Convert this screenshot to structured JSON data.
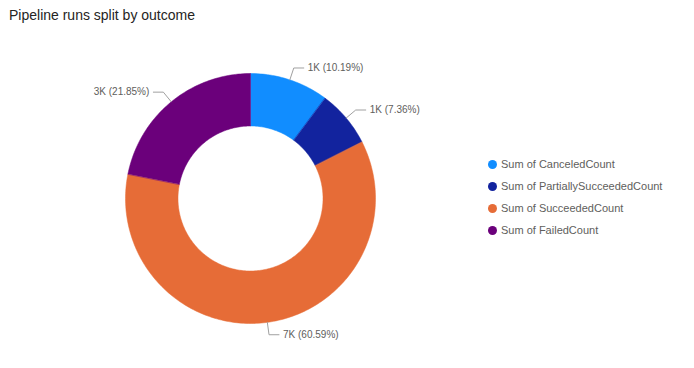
{
  "chart_data": {
    "type": "donut",
    "title": "Pipeline runs split by outcome",
    "categories": [
      "Sum of CanceledCount",
      "Sum of PartiallySucceededCount",
      "Sum of SucceededCount",
      "Sum of FailedCount"
    ],
    "values": [
      10.19,
      7.36,
      60.59,
      21.85
    ],
    "value_labels": [
      "1K (10.19%)",
      "1K (7.36%)",
      "7K (60.59%)",
      "3K (21.85%)"
    ],
    "colors": [
      "#118DFF",
      "#12239E",
      "#E66C37",
      "#6B007B"
    ],
    "data_labels": true,
    "legend": "right"
  }
}
